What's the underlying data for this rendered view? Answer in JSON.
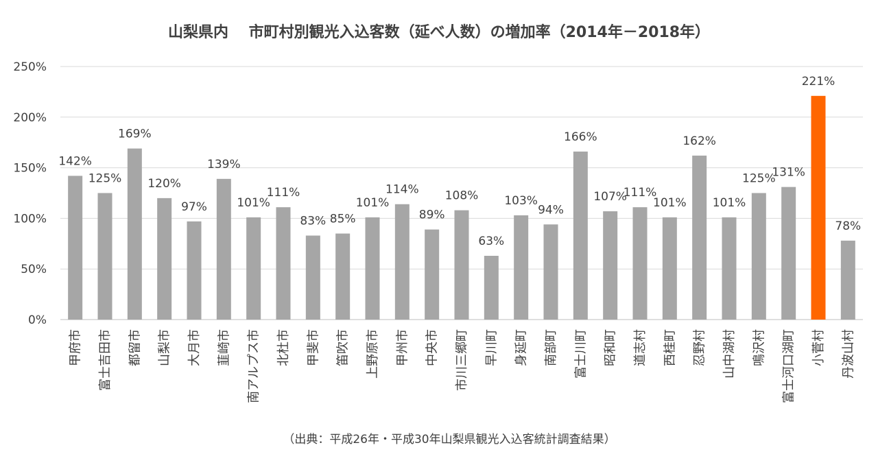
{
  "chart_data": {
    "type": "bar",
    "title": "山梨県内　 市町村別観光入込客数（延べ人数）の増加率（2014年－2018年）",
    "source_note": "（出典：平成26年・平成30年山梨県観光入込客統計調査結果）",
    "xlabel": "",
    "ylabel": "",
    "ylim": [
      0,
      250
    ],
    "y_ticks": [
      0,
      50,
      100,
      150,
      200,
      250
    ],
    "y_tick_labels": [
      "0%",
      "50%",
      "100%",
      "150%",
      "200%",
      "250%"
    ],
    "grid": true,
    "legend": "none",
    "categories": [
      "甲府市",
      "富士吉田市",
      "都留市",
      "山梨市",
      "大月市",
      "韮崎市",
      "南アルプス市",
      "北杜市",
      "甲斐市",
      "笛吹市",
      "上野原市",
      "甲州市",
      "中央市",
      "市川三郷町",
      "早川町",
      "身延町",
      "南部町",
      "富士川町",
      "昭和町",
      "道志村",
      "西桂町",
      "忍野村",
      "山中湖村",
      "鳴沢村",
      "富士河口湖町",
      "小菅村",
      "丹波山村"
    ],
    "values": [
      142,
      125,
      169,
      120,
      97,
      139,
      101,
      111,
      83,
      85,
      101,
      114,
      89,
      108,
      63,
      103,
      94,
      166,
      107,
      111,
      101,
      162,
      101,
      125,
      131,
      221,
      78
    ],
    "value_labels": [
      "142%",
      "125%",
      "169%",
      "120%",
      "97%",
      "139%",
      "101%",
      "111%",
      "83%",
      "85%",
      "101%",
      "114%",
      "89%",
      "108%",
      "63%",
      "103%",
      "94%",
      "166%",
      "107%",
      "111%",
      "101%",
      "162%",
      "101%",
      "125%",
      "131%",
      "221%",
      "78%"
    ],
    "highlight_index": 25,
    "colors": {
      "bar": "#a6a6a6",
      "highlight": "#ff6600",
      "grid": "#d9d9d9",
      "text": "#404040"
    }
  }
}
